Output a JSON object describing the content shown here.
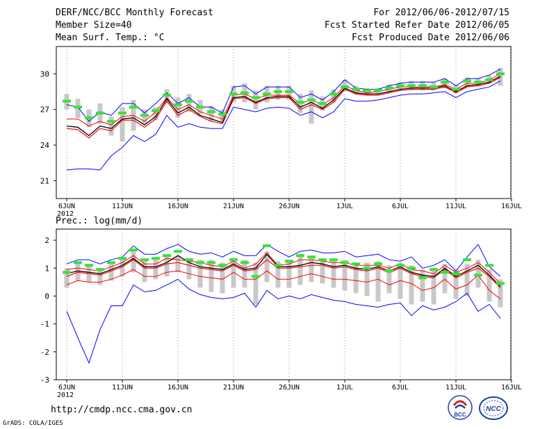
{
  "header": {
    "title": "DERF/NCC/BCC Monthly Forecast",
    "member_size": "Member Size=40",
    "variable": "Mean Surf. Temp.: °C",
    "forecast_period": "For 2012/06/06-2012/07/15",
    "refer_date": "Fcst Started Refer Date 2012/06/05",
    "produced_date": "Fcst Produced Date 2012/06/06"
  },
  "footer": {
    "url": "http://cmdp.ncc.cma.gov.cn",
    "grads": "GrADS: COLA/IGES",
    "logo_left_text": "BCC",
    "logo_right_text": "NCC"
  },
  "colors": {
    "max_line": "#0000ff",
    "min_line": "#0000ff",
    "pct_line": "#ff0000",
    "mean_line": "#000000",
    "marker": "#33e633",
    "box": "#c8c8c8"
  },
  "chart_data": [
    {
      "type": "line",
      "name": "temperature",
      "title": "Mean Surf. Temp.: °C",
      "x_ticks": [
        "6JUN",
        "11JUN",
        "16JUN",
        "21JUN",
        "26JUN",
        "1JUL",
        "6JUL",
        "11JUL",
        "16JUL"
      ],
      "x_sublabel": "2012",
      "ylim": [
        19.5,
        32.3
      ],
      "yticks": [
        21,
        24,
        27,
        30
      ],
      "series": [
        {
          "name": "max",
          "values": [
            27.4,
            27.2,
            26.0,
            26.8,
            26.5,
            27.5,
            27.5,
            26.7,
            27.5,
            28.4,
            27.5,
            28.0,
            27.2,
            27.2,
            26.7,
            28.9,
            29.0,
            28.3,
            28.9,
            28.9,
            28.9,
            28.0,
            28.3,
            27.8,
            28.5,
            29.5,
            28.8,
            28.7,
            28.7,
            29.0,
            29.2,
            29.3,
            29.3,
            29.3,
            29.6,
            29.0,
            29.6,
            29.6,
            29.9,
            30.4
          ]
        },
        {
          "name": "upper",
          "values": [
            26.2,
            26.2,
            25.6,
            26.0,
            25.7,
            26.4,
            26.5,
            26.0,
            26.8,
            28.0,
            27.0,
            27.4,
            26.8,
            26.5,
            26.2,
            28.2,
            28.3,
            27.9,
            28.2,
            28.2,
            28.2,
            27.5,
            27.8,
            27.4,
            28.0,
            29.0,
            28.6,
            28.4,
            28.5,
            28.7,
            28.9,
            28.9,
            28.9,
            28.9,
            29.1,
            28.7,
            29.2,
            29.2,
            29.5,
            30.0
          ]
        },
        {
          "name": "mean",
          "values": [
            25.6,
            25.5,
            24.8,
            25.6,
            25.4,
            26.2,
            26.3,
            25.7,
            26.4,
            27.9,
            26.7,
            27.2,
            26.5,
            26.2,
            25.9,
            28.0,
            28.1,
            27.6,
            28.0,
            28.1,
            28.1,
            27.2,
            27.6,
            27.1,
            27.8,
            28.8,
            28.4,
            28.3,
            28.3,
            28.5,
            28.7,
            28.8,
            28.8,
            28.8,
            29.0,
            28.5,
            29.0,
            29.1,
            29.3,
            29.8
          ]
        },
        {
          "name": "lower",
          "values": [
            25.4,
            25.3,
            24.6,
            25.4,
            25.2,
            26.1,
            26.1,
            25.5,
            26.2,
            27.7,
            26.5,
            27.0,
            26.4,
            26.0,
            25.8,
            27.9,
            28.0,
            27.5,
            27.9,
            28.0,
            28.0,
            27.0,
            27.4,
            27.0,
            27.6,
            28.7,
            28.3,
            28.2,
            28.2,
            28.4,
            28.6,
            28.7,
            28.7,
            28.7,
            28.9,
            28.4,
            28.9,
            29.0,
            29.2,
            29.7
          ]
        },
        {
          "name": "min",
          "values": [
            21.9,
            22.0,
            22.0,
            21.9,
            23.1,
            23.8,
            24.8,
            24.3,
            24.9,
            26.5,
            25.5,
            25.8,
            25.5,
            25.4,
            25.4,
            27.2,
            27.0,
            26.8,
            27.1,
            27.2,
            27.1,
            26.5,
            26.8,
            26.3,
            26.8,
            27.9,
            27.7,
            27.7,
            27.8,
            28.0,
            28.2,
            28.3,
            28.3,
            28.4,
            28.5,
            28.0,
            28.5,
            28.7,
            28.9,
            29.4
          ]
        },
        {
          "name": "control",
          "values": [
            27.7,
            27.2,
            26.3,
            26.7,
            26.0,
            26.7,
            27.2,
            26.5,
            26.9,
            28.2,
            27.4,
            27.7,
            27.2,
            26.8,
            26.6,
            28.3,
            28.4,
            28.0,
            28.3,
            28.5,
            28.5,
            27.6,
            27.8,
            27.5,
            28.3,
            28.9,
            28.7,
            28.6,
            28.6,
            28.8,
            29.0,
            29.0,
            29.0,
            28.9,
            29.3,
            28.7,
            29.4,
            29.3,
            29.5,
            30.0
          ]
        },
        {
          "name": "box_top",
          "values": [
            28.3,
            27.9,
            27.0,
            27.5,
            26.4,
            27.2,
            27.8,
            27.0,
            27.2,
            28.7,
            28.0,
            28.3,
            27.8,
            27.3,
            27.0,
            29.0,
            29.2,
            28.6,
            29.0,
            29.0,
            29.0,
            28.3,
            28.6,
            28.1,
            28.7,
            29.5,
            29.0,
            28.8,
            28.8,
            29.1,
            29.3,
            29.4,
            29.4,
            29.3,
            29.6,
            29.1,
            29.7,
            29.6,
            29.9,
            30.5
          ]
        },
        {
          "name": "box_bottom",
          "values": [
            27.0,
            26.3,
            25.5,
            25.8,
            24.8,
            24.3,
            25.2,
            25.8,
            26.1,
            27.5,
            26.3,
            26.8,
            26.6,
            26.0,
            26.0,
            27.6,
            27.6,
            27.0,
            27.6,
            27.8,
            27.8,
            26.7,
            25.8,
            26.9,
            27.6,
            28.5,
            28.3,
            28.2,
            28.3,
            28.4,
            28.6,
            28.6,
            28.6,
            28.6,
            28.8,
            28.4,
            28.9,
            29.0,
            29.2,
            29.0
          ]
        }
      ]
    },
    {
      "type": "line",
      "name": "precipitation",
      "title": "Prec.: log(mm/d)",
      "x_ticks": [
        "6JUN",
        "11JUN",
        "16JUN",
        "21JUN",
        "26JUN",
        "1JUL",
        "6JUL",
        "11JUL",
        "16JUL"
      ],
      "x_sublabel": "2012",
      "ylim": [
        -3,
        2.4
      ],
      "yticks": [
        -3,
        -2,
        -1,
        0,
        1,
        2
      ],
      "series": [
        {
          "name": "max",
          "values": [
            1.15,
            1.3,
            1.3,
            1.15,
            1.3,
            1.4,
            1.8,
            1.5,
            1.5,
            1.7,
            1.85,
            1.6,
            1.5,
            1.55,
            1.4,
            1.6,
            1.45,
            1.45,
            1.85,
            1.6,
            1.4,
            1.6,
            1.65,
            1.55,
            1.55,
            1.6,
            1.4,
            1.45,
            1.5,
            1.3,
            1.25,
            1.4,
            1.0,
            1.1,
            1.3,
            0.9,
            1.4,
            1.85,
            1.05,
            0.7
          ]
        },
        {
          "name": "upper",
          "values": [
            0.95,
            1.0,
            0.95,
            0.9,
            1.05,
            1.2,
            1.45,
            1.15,
            1.15,
            1.35,
            1.3,
            1.25,
            1.2,
            1.1,
            1.05,
            1.25,
            1.0,
            1.15,
            1.55,
            1.1,
            1.15,
            1.3,
            1.3,
            1.25,
            1.2,
            1.2,
            1.1,
            1.1,
            1.1,
            1.0,
            1.15,
            0.95,
            0.9,
            0.8,
            1.1,
            0.85,
            1.0,
            1.2,
            0.85,
            0.45
          ]
        },
        {
          "name": "mean",
          "values": [
            0.8,
            0.9,
            0.85,
            0.8,
            0.95,
            1.1,
            1.35,
            1.05,
            1.05,
            1.2,
            1.45,
            1.2,
            1.05,
            1.0,
            0.95,
            1.15,
            0.95,
            1.0,
            1.5,
            1.05,
            1.05,
            1.1,
            1.2,
            1.15,
            1.05,
            1.1,
            1.0,
            0.95,
            1.05,
            0.9,
            1.05,
            0.85,
            0.75,
            0.7,
            1.0,
            0.7,
            0.9,
            1.1,
            0.75,
            0.35
          ]
        },
        {
          "name": "lower",
          "values": [
            0.7,
            0.85,
            0.8,
            0.75,
            0.9,
            1.05,
            1.3,
            1.0,
            1.0,
            1.15,
            1.2,
            1.1,
            1.0,
            0.95,
            0.9,
            1.1,
            0.9,
            0.95,
            1.3,
            1.0,
            1.0,
            1.05,
            1.1,
            1.1,
            1.0,
            1.05,
            0.95,
            0.9,
            1.0,
            0.85,
            1.0,
            0.8,
            0.7,
            0.65,
            0.95,
            0.65,
            0.85,
            1.0,
            0.7,
            0.3
          ]
        },
        {
          "name": "pct_low",
          "values": [
            0.4,
            0.55,
            0.5,
            0.5,
            0.6,
            0.75,
            0.95,
            0.7,
            0.7,
            0.85,
            0.9,
            0.8,
            0.7,
            0.65,
            0.6,
            0.85,
            0.6,
            0.6,
            0.9,
            0.6,
            0.6,
            0.7,
            0.8,
            0.7,
            0.6,
            0.6,
            0.55,
            0.5,
            0.6,
            0.4,
            0.55,
            0.45,
            0.2,
            0.3,
            0.6,
            0.25,
            0.4,
            0.75,
            0.2,
            -0.1
          ]
        },
        {
          "name": "min",
          "values": [
            -0.55,
            -1.5,
            -2.4,
            -1.2,
            -0.35,
            -0.35,
            0.4,
            0.15,
            0.2,
            0.4,
            0.6,
            0.25,
            0.05,
            -0.05,
            -0.1,
            -0.05,
            0.1,
            -0.4,
            0.2,
            -0.1,
            0.0,
            -0.1,
            0.05,
            -0.05,
            -0.15,
            -0.2,
            -0.3,
            -0.35,
            -0.4,
            -0.3,
            -0.25,
            -0.7,
            -0.35,
            -0.5,
            -0.4,
            -0.2,
            0.1,
            -0.55,
            -0.3,
            -0.8
          ]
        },
        {
          "name": "control",
          "values": [
            0.85,
            1.2,
            1.1,
            0.95,
            1.2,
            1.35,
            1.65,
            1.3,
            1.35,
            1.45,
            1.6,
            1.3,
            1.2,
            1.2,
            1.1,
            1.3,
            1.2,
            0.7,
            1.8,
            1.1,
            1.25,
            1.45,
            1.4,
            1.3,
            1.3,
            1.2,
            1.15,
            1.0,
            1.15,
            0.9,
            1.1,
            1.0,
            0.65,
            0.95,
            0.85,
            0.8,
            1.3,
            0.75,
            1.1,
            0.45
          ]
        },
        {
          "name": "box_top",
          "values": [
            1.0,
            1.2,
            1.15,
            1.0,
            1.15,
            1.35,
            1.6,
            1.3,
            1.3,
            1.5,
            1.45,
            1.35,
            1.3,
            1.3,
            1.2,
            1.35,
            1.3,
            1.2,
            1.6,
            1.25,
            1.3,
            1.4,
            1.4,
            1.35,
            1.3,
            1.3,
            1.2,
            1.2,
            1.25,
            1.1,
            1.2,
            1.1,
            0.95,
            1.0,
            1.15,
            0.95,
            1.15,
            1.3,
            0.95,
            0.6
          ]
        },
        {
          "name": "box_bottom",
          "values": [
            0.3,
            0.55,
            0.5,
            0.4,
            0.55,
            0.7,
            0.85,
            0.5,
            0.6,
            0.7,
            0.85,
            0.6,
            0.3,
            0.15,
            0.1,
            0.3,
            0.3,
            -0.3,
            0.5,
            0.3,
            0.3,
            0.4,
            0.5,
            0.45,
            0.3,
            0.2,
            0.1,
            0.0,
            -0.2,
            0.1,
            -0.1,
            -0.3,
            -0.2,
            -0.3,
            0.1,
            -0.1,
            0.0,
            0.3,
            -0.2,
            -0.4
          ]
        }
      ]
    }
  ]
}
